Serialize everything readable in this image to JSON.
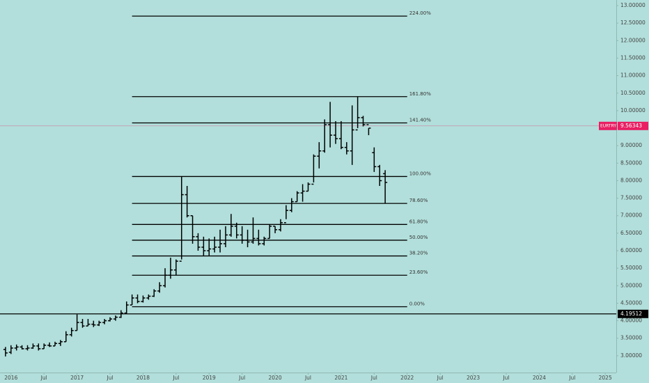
{
  "chart_data": {
    "type": "ohlc",
    "symbol": "EURTRY",
    "x": [
      "2015-12",
      "2016-01",
      "2016-02",
      "2016-03",
      "2016-04",
      "2016-05",
      "2016-06",
      "2016-07",
      "2016-08",
      "2016-09",
      "2016-10",
      "2016-11",
      "2016-12",
      "2017-01",
      "2017-02",
      "2017-03",
      "2017-04",
      "2017-05",
      "2017-06",
      "2017-07",
      "2017-08",
      "2017-09",
      "2017-10",
      "2017-11",
      "2017-12",
      "2018-01",
      "2018-02",
      "2018-03",
      "2018-04",
      "2018-05",
      "2018-06",
      "2018-07",
      "2018-08",
      "2018-09",
      "2018-10",
      "2018-11",
      "2018-12",
      "2019-01",
      "2019-02",
      "2019-03",
      "2019-04",
      "2019-05",
      "2019-06",
      "2019-07",
      "2019-08",
      "2019-09",
      "2019-10",
      "2019-11",
      "2019-12",
      "2020-01",
      "2020-02",
      "2020-03",
      "2020-04",
      "2020-05",
      "2020-06",
      "2020-07",
      "2020-08",
      "2020-09",
      "2020-10",
      "2020-11",
      "2020-12",
      "2021-01",
      "2021-02",
      "2021-03",
      "2021-04",
      "2021-05",
      "2021-06",
      "2021-07",
      "2021-08",
      "2021-09"
    ],
    "open": [
      3.18,
      3.1,
      3.22,
      3.25,
      3.2,
      3.22,
      3.28,
      3.2,
      3.3,
      3.28,
      3.35,
      3.4,
      3.6,
      3.72,
      3.95,
      3.85,
      3.9,
      3.88,
      3.95,
      4.0,
      4.05,
      4.1,
      4.22,
      4.45,
      4.65,
      4.55,
      4.65,
      4.7,
      4.85,
      5.0,
      5.3,
      5.45,
      5.7,
      7.6,
      7.0,
      6.4,
      6.1,
      6.0,
      6.05,
      6.1,
      6.2,
      6.45,
      6.7,
      6.45,
      6.3,
      6.25,
      6.35,
      6.2,
      6.35,
      6.7,
      6.6,
      6.8,
      7.15,
      7.4,
      7.65,
      7.7,
      7.9,
      8.7,
      8.85,
      9.6,
      9.3,
      9.2,
      8.95,
      8.85,
      9.45,
      9.8,
      9.6,
      8.8,
      8.4,
      8.2
    ],
    "high": [
      3.25,
      3.3,
      3.32,
      3.3,
      3.3,
      3.35,
      3.35,
      3.35,
      3.38,
      3.4,
      3.45,
      3.7,
      3.8,
      4.18,
      4.05,
      4.05,
      4.0,
      4.0,
      4.05,
      4.1,
      4.15,
      4.3,
      4.55,
      4.75,
      4.75,
      4.72,
      4.75,
      4.9,
      5.1,
      5.5,
      5.8,
      5.75,
      8.12,
      7.85,
      7.0,
      6.5,
      6.4,
      6.35,
      6.4,
      6.6,
      6.7,
      7.05,
      6.8,
      6.7,
      6.6,
      6.95,
      6.6,
      6.4,
      6.75,
      6.7,
      6.9,
      7.3,
      7.5,
      7.7,
      7.9,
      7.95,
      8.75,
      9.1,
      9.75,
      10.25,
      9.7,
      9.7,
      9.1,
      10.15,
      10.4,
      9.85,
      9.5,
      8.95,
      8.45,
      8.3
    ],
    "low": [
      2.98,
      3.05,
      3.15,
      3.18,
      3.15,
      3.2,
      3.15,
      3.2,
      3.25,
      3.28,
      3.28,
      3.4,
      3.55,
      3.72,
      3.8,
      3.85,
      3.82,
      3.85,
      3.9,
      3.98,
      4.0,
      4.08,
      4.2,
      4.45,
      4.5,
      4.52,
      4.6,
      4.68,
      4.8,
      4.95,
      5.2,
      5.3,
      5.75,
      6.95,
      6.2,
      6.0,
      5.85,
      5.85,
      5.95,
      5.95,
      6.1,
      6.4,
      6.35,
      6.2,
      6.1,
      6.2,
      6.15,
      6.15,
      6.35,
      6.5,
      6.55,
      6.9,
      7.1,
      7.4,
      7.4,
      7.7,
      7.95,
      8.35,
      8.8,
      8.95,
      9.05,
      8.9,
      8.75,
      8.45,
      9.5,
      9.55,
      9.3,
      8.25,
      7.85,
      7.35
    ],
    "close": [
      3.08,
      3.22,
      3.25,
      3.2,
      3.22,
      3.28,
      3.2,
      3.3,
      3.28,
      3.35,
      3.4,
      3.6,
      3.72,
      3.95,
      3.85,
      3.9,
      3.88,
      3.95,
      4.0,
      4.05,
      4.1,
      4.22,
      4.45,
      4.65,
      4.55,
      4.65,
      4.7,
      4.85,
      5.0,
      5.3,
      5.45,
      5.7,
      7.6,
      7.0,
      6.4,
      6.1,
      6.0,
      6.05,
      6.1,
      6.2,
      6.45,
      6.7,
      6.45,
      6.3,
      6.25,
      6.35,
      6.2,
      6.35,
      6.7,
      6.6,
      6.8,
      7.15,
      7.4,
      7.65,
      7.7,
      7.9,
      8.7,
      8.85,
      9.6,
      9.3,
      9.2,
      8.95,
      8.85,
      9.45,
      9.8,
      9.6,
      9.5,
      8.4,
      8.0,
      7.95
    ],
    "color": "#000000",
    "fib_levels": [
      {
        "value": 4.4,
        "label": "0.00%"
      },
      {
        "value": 5.3,
        "label": "23.60%"
      },
      {
        "value": 5.85,
        "label": "38.20%"
      },
      {
        "value": 6.3,
        "label": "50.00%"
      },
      {
        "value": 6.75,
        "label": "61.80%"
      },
      {
        "value": 7.35,
        "label": "78.60%"
      },
      {
        "value": 8.12,
        "label": "100.00%"
      },
      {
        "value": 9.65,
        "label": "141.40%"
      },
      {
        "value": 10.4,
        "label": "161.80%"
      },
      {
        "value": 12.7,
        "label": "224.00%"
      }
    ],
    "hline": {
      "value": 4.19512,
      "color": "#000000"
    },
    "last_price": {
      "value": 9.56343,
      "color": "#e91e63"
    },
    "xlim": [
      "2015-11",
      "2025-03"
    ],
    "ylim": [
      2.52,
      13.16
    ],
    "xticks": [
      {
        "value": "2016-01",
        "label": "2016"
      },
      {
        "value": "2016-07",
        "label": "Jul"
      },
      {
        "value": "2017-01",
        "label": "2017"
      },
      {
        "value": "2017-07",
        "label": "Jul"
      },
      {
        "value": "2018-01",
        "label": "2018"
      },
      {
        "value": "2018-07",
        "label": "Jul"
      },
      {
        "value": "2019-01",
        "label": "2019"
      },
      {
        "value": "2019-07",
        "label": "Jul"
      },
      {
        "value": "2020-01",
        "label": "2020"
      },
      {
        "value": "2020-07",
        "label": "Jul"
      },
      {
        "value": "2021-01",
        "label": "2021"
      },
      {
        "value": "2021-07",
        "label": "Jul"
      },
      {
        "value": "2022-01",
        "label": "2022"
      },
      {
        "value": "2022-07",
        "label": "Jul"
      },
      {
        "value": "2023-01",
        "label": "2023"
      },
      {
        "value": "2023-07",
        "label": "Jul"
      },
      {
        "value": "2024-01",
        "label": "2024"
      },
      {
        "value": "2024-07",
        "label": "Jul"
      },
      {
        "value": "2025-01",
        "label": "2025"
      }
    ],
    "yticks": [
      {
        "value": 3.0,
        "label": "3.00000"
      },
      {
        "value": 3.5,
        "label": "3.50000"
      },
      {
        "value": 4.0,
        "label": "4.00000"
      },
      {
        "value": 4.5,
        "label": "4.50000"
      },
      {
        "value": 5.0,
        "label": "5.00000"
      },
      {
        "value": 5.5,
        "label": "5.50000"
      },
      {
        "value": 6.0,
        "label": "6.00000"
      },
      {
        "value": 6.5,
        "label": "6.50000"
      },
      {
        "value": 7.0,
        "label": "7.00000"
      },
      {
        "value": 7.5,
        "label": "7.50000"
      },
      {
        "value": 8.0,
        "label": "8.00000"
      },
      {
        "value": 8.5,
        "label": "8.50000"
      },
      {
        "value": 9.0,
        "label": "9.00000"
      },
      {
        "value": 9.5,
        "label": "9.50000"
      },
      {
        "value": 10.0,
        "label": "10.00000"
      },
      {
        "value": 10.5,
        "label": "10.50000"
      },
      {
        "value": 11.0,
        "label": "11.00000"
      },
      {
        "value": 11.5,
        "label": "11.50000"
      },
      {
        "value": 12.0,
        "label": "12.00000"
      },
      {
        "value": 12.5,
        "label": "12.50000"
      },
      {
        "value": 13.0,
        "label": "13.00000"
      }
    ]
  }
}
